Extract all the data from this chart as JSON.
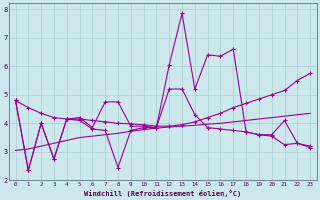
{
  "xlabel": "Windchill (Refroidissement éolien,°C)",
  "bg_color": "#cce8ec",
  "line_color": "#990099",
  "grid_color": "#aacccc",
  "xlim": [
    -0.5,
    23.5
  ],
  "ylim": [
    2.0,
    8.2
  ],
  "xticks": [
    0,
    1,
    2,
    3,
    4,
    5,
    6,
    7,
    8,
    9,
    10,
    11,
    12,
    13,
    14,
    15,
    16,
    17,
    18,
    19,
    20,
    21,
    22,
    23
  ],
  "yticks": [
    2,
    3,
    4,
    5,
    6,
    7,
    8
  ],
  "s1_x": [
    0,
    1,
    2,
    3,
    4,
    5,
    6,
    7,
    8,
    9,
    10,
    11,
    12,
    13,
    14,
    15,
    16,
    17,
    18,
    19,
    20,
    21,
    22,
    23
  ],
  "s1_y": [
    4.8,
    2.35,
    4.0,
    2.75,
    4.15,
    4.2,
    3.85,
    4.75,
    4.75,
    3.9,
    3.9,
    3.85,
    6.05,
    7.85,
    5.2,
    6.4,
    6.35,
    6.6,
    3.7,
    3.6,
    3.6,
    4.1,
    3.3,
    3.2
  ],
  "s2_x": [
    0,
    1,
    2,
    3,
    4,
    5,
    6,
    7,
    8,
    9,
    10,
    11,
    12,
    13,
    14,
    15,
    16,
    17,
    18,
    19,
    20,
    21,
    22,
    23
  ],
  "s2_y": [
    4.8,
    2.35,
    4.0,
    2.75,
    4.15,
    4.1,
    3.8,
    3.75,
    2.45,
    3.75,
    3.85,
    3.85,
    5.2,
    5.2,
    4.3,
    3.85,
    3.8,
    3.75,
    3.7,
    3.6,
    3.55,
    3.25,
    3.3,
    3.15
  ],
  "s3_x": [
    0,
    1,
    2,
    3,
    4,
    5,
    6,
    7,
    8,
    9,
    10,
    11,
    12,
    13,
    14,
    15,
    16,
    17,
    18,
    19,
    20,
    21,
    22,
    23
  ],
  "s3_y": [
    3.05,
    3.1,
    3.2,
    3.3,
    3.4,
    3.5,
    3.55,
    3.6,
    3.65,
    3.72,
    3.78,
    3.83,
    3.87,
    3.9,
    3.93,
    3.97,
    4.0,
    4.05,
    4.1,
    4.15,
    4.2,
    4.25,
    4.3,
    4.35
  ],
  "s4_x": [
    0,
    1,
    2,
    3,
    4,
    5,
    6,
    7,
    8,
    9,
    10,
    11,
    12,
    13,
    14,
    15,
    16,
    17,
    18,
    19,
    20,
    21,
    22,
    23
  ],
  "s4_y": [
    4.8,
    4.55,
    4.35,
    4.2,
    4.15,
    4.15,
    4.1,
    4.05,
    4.0,
    3.98,
    3.95,
    3.9,
    3.9,
    3.95,
    4.05,
    4.2,
    4.35,
    4.55,
    4.7,
    4.85,
    5.0,
    5.15,
    5.5,
    5.75
  ]
}
